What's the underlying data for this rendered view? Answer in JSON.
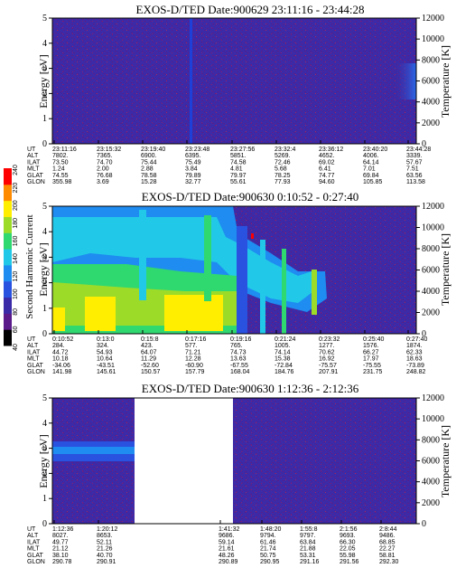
{
  "colors": {
    "background": "#3c2aa6",
    "noise": "#5a1f8c",
    "speck": "#c03050"
  },
  "colorbar": {
    "title": "Second Harmonic Current",
    "ticks": [
      "40",
      "60",
      "80",
      "100",
      "120",
      "140",
      "160",
      "180",
      "200",
      "220",
      "240"
    ],
    "colors": [
      "#000000",
      "#5a1a8a",
      "#3a2aa8",
      "#2a52e0",
      "#1e8cf0",
      "#22c8e8",
      "#30d870",
      "#9cdc28",
      "#ffee00",
      "#ff8c00",
      "#ff0000"
    ]
  },
  "panel_labels": {
    "ylabel_left": "Energy [eV]",
    "ylabel_right": "Temperature [K]"
  },
  "chart_data": [
    {
      "type": "heatmap",
      "title": "EXOS-D/TED   Date:900629  23:11:16 - 23:44:28",
      "ylim_left": [
        0,
        5
      ],
      "ylim_right": [
        0,
        12000
      ],
      "yticks_left": [
        "0",
        "1",
        "2",
        "3",
        "4",
        "5"
      ],
      "yticks_right": [
        "0",
        "2000",
        "4000",
        "6000",
        "8000",
        "10000",
        "12000"
      ],
      "orbit_labels": [
        "UT",
        "ALT",
        "ILAT",
        "MLT",
        "GLAT",
        "GLON"
      ],
      "columns": [
        [
          "23:11:16",
          "7802.",
          "73.50",
          "1.24",
          "74.55",
          "355.98"
        ],
        [
          "23:15:32",
          "7365.",
          "74.70",
          "2.00",
          "76.68",
          "3.69"
        ],
        [
          "23:19:40",
          "6900.",
          "75.44",
          "2.88",
          "78.58",
          "15.28"
        ],
        [
          "23:23:48",
          "6395.",
          "75.49",
          "3.84",
          "79.89",
          "32.77"
        ],
        [
          "23:27:56",
          "5851.",
          "74.58",
          "4.81",
          "79.97",
          "55.61"
        ],
        [
          "23:32:4",
          "5269.",
          "72.46",
          "5.68",
          "78.25",
          "77.93"
        ],
        [
          "23:36:12",
          "4652.",
          "69.02",
          "6.41",
          "74.77",
          "94.60"
        ],
        [
          "23:40:20",
          "4006.",
          "64.14",
          "7.01",
          "69.84",
          "105.85"
        ],
        [
          "23:44:28",
          "3339.",
          "57.67",
          "7.51",
          "63.56",
          "113.58"
        ]
      ]
    },
    {
      "type": "heatmap",
      "title": "EXOS-D/TED   Date:900630  0:10:52 - 0:27:40",
      "ylim_left": [
        0,
        5
      ],
      "ylim_right": [
        0,
        12000
      ],
      "yticks_left": [
        "0",
        "1",
        "2",
        "3",
        "4",
        "5"
      ],
      "yticks_right": [
        "0",
        "2000",
        "4000",
        "6000",
        "8000",
        "10000",
        "12000"
      ],
      "orbit_labels": [
        "UT",
        "ALT",
        "ILAT",
        "MLT",
        "GLAT",
        "GLON"
      ],
      "columns": [
        [
          "0:10:52",
          "284.",
          "44.72",
          "10.18",
          "-34.06",
          "141.98"
        ],
        [
          "0:13:0",
          "324.",
          "54.93",
          "10.64",
          "-43.51",
          "145.61"
        ],
        [
          "0:15:8",
          "423.",
          "64.07",
          "11.29",
          "-52.60",
          "150.57"
        ],
        [
          "0:17:16",
          "577.",
          "71.21",
          "12.28",
          "-60.90",
          "157.79"
        ],
        [
          "0:19:16",
          "765.",
          "74.73",
          "13.63",
          "-67.55",
          "168.04"
        ],
        [
          "0:21:24",
          "1005.",
          "74.14",
          "15.38",
          "-72.84",
          "184.76"
        ],
        [
          "0:23:32",
          "1277.",
          "70.62",
          "16.92",
          "-75.57",
          "207.91"
        ],
        [
          "0:25:40",
          "1576.",
          "66.27",
          "17.97",
          "-75.55",
          "231.75"
        ],
        [
          "0:27:40",
          "1874.",
          "62.33",
          "18.63",
          "-73.89",
          "248.82"
        ]
      ]
    },
    {
      "type": "heatmap",
      "title": "EXOS-D/TED   Date:900630  1:12:36 - 2:12:36",
      "ylim_left": [
        0,
        5
      ],
      "ylim_right": [
        0,
        12000
      ],
      "yticks_left": [
        "0",
        "1",
        "2",
        "3",
        "4",
        "5"
      ],
      "yticks_right": [
        "0",
        "2000",
        "4000",
        "6000",
        "8000",
        "10000",
        "12000"
      ],
      "orbit_labels": [
        "UT",
        "ALT",
        "ILAT",
        "MLT",
        "GLAT",
        "GLON"
      ],
      "columns": [
        [
          "1:12:36",
          "8027.",
          "49.77",
          "21.12",
          "38.10",
          "290.78"
        ],
        [
          "1:20:12",
          "8653.",
          "52.11",
          "21.26",
          "40.70",
          "290.91"
        ],
        [
          "1:41:32",
          "9686.",
          "59.14",
          "21.61",
          "48.26",
          "290.89"
        ],
        [
          "1:48:20",
          "9794.",
          "61.46",
          "21.74",
          "50.75",
          "290.95"
        ],
        [
          "1:55:8",
          "9797.",
          "63.84",
          "21.88",
          "53.31",
          "291.16"
        ],
        [
          "2:1:56",
          "9693.",
          "66.30",
          "22.05",
          "55.98",
          "291.56"
        ],
        [
          "2:8:44",
          "9486.",
          "68.85",
          "22.27",
          "58.81",
          "292.30"
        ]
      ],
      "data_gaps": [
        [
          "1:20:12",
          "1:41:32"
        ]
      ]
    }
  ]
}
